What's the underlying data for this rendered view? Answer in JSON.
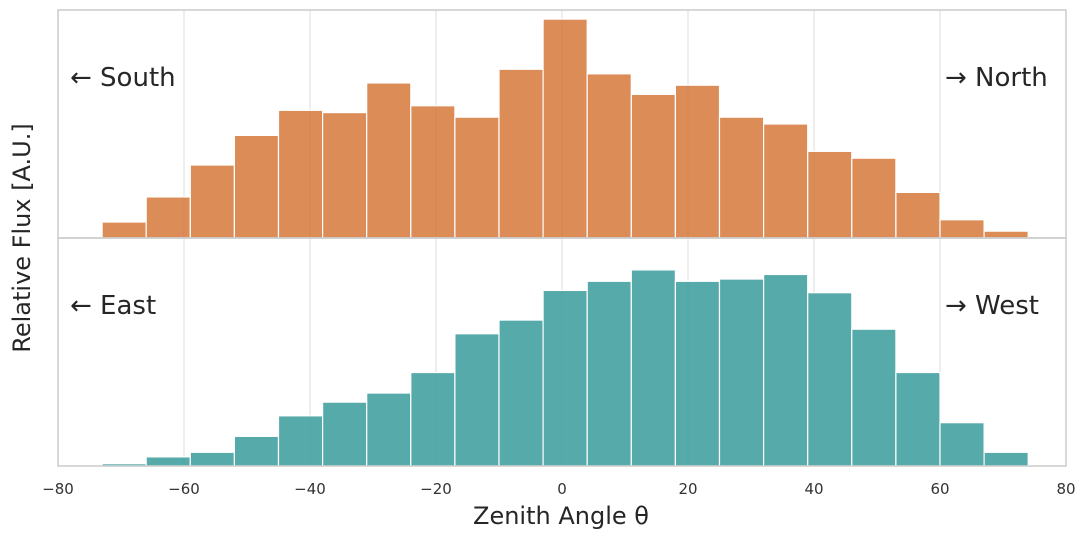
{
  "chart_data": {
    "type": "bar",
    "xlabel": "Zenith Angle θ",
    "ylabel": "Relative Flux [A.U.]",
    "xlim": [
      -80,
      80
    ],
    "xticks": [
      -80,
      -60,
      -40,
      -20,
      0,
      20,
      40,
      60,
      80
    ],
    "xtick_labels": [
      "−80",
      "−60",
      "−40",
      "−20",
      "0",
      "20",
      "40",
      "60",
      "80"
    ],
    "grid": true,
    "bin_edges": [
      -73,
      -66,
      -59,
      -52,
      -45,
      -38,
      -31,
      -24,
      -17,
      -10,
      -3,
      4,
      11,
      18,
      25,
      32,
      39,
      46,
      53,
      60,
      67,
      74
    ],
    "panels": [
      {
        "color": "#d5783a",
        "ylim": [
          0,
          100
        ],
        "left_label": "← South",
        "right_label": "→ North",
        "values": [
          7,
          18,
          32,
          45,
          56,
          55,
          68,
          58,
          53,
          74,
          96,
          72,
          63,
          67,
          53,
          50,
          38,
          35,
          20,
          8,
          3
        ]
      },
      {
        "color": "#3a9b9b",
        "ylim": [
          0,
          100
        ],
        "left_label": "←  East",
        "right_label": "→ West",
        "values": [
          1,
          4,
          6,
          13,
          22,
          28,
          32,
          41,
          58,
          64,
          77,
          81,
          86,
          81,
          82,
          84,
          76,
          60,
          41,
          19,
          6
        ]
      }
    ]
  }
}
